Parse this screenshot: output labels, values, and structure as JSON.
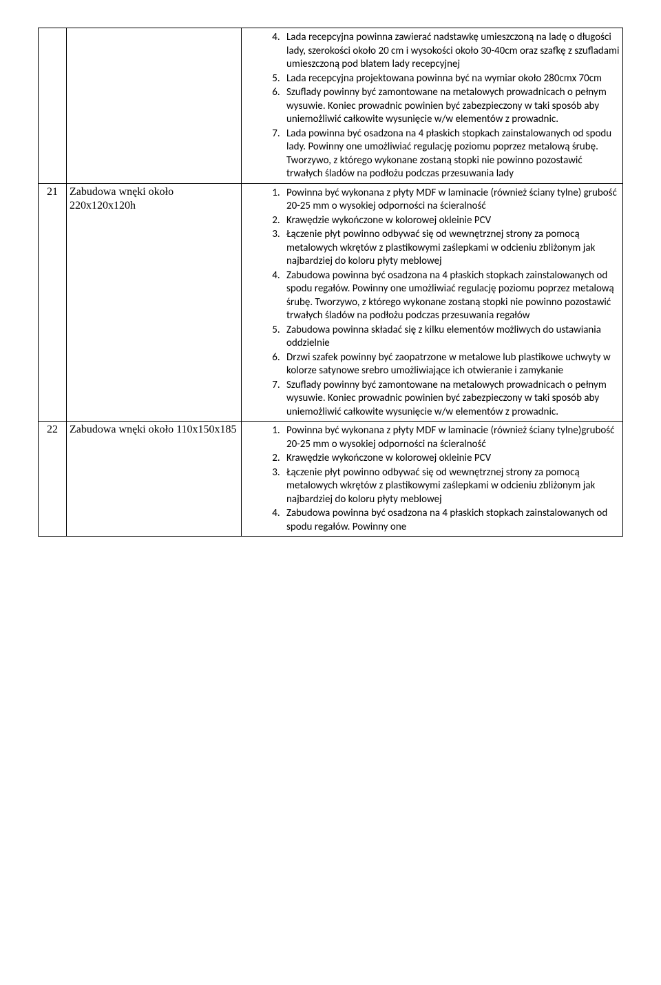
{
  "rows": [
    {
      "num": "",
      "desc": "",
      "start": 4,
      "items": [
        "Lada recepcyjna powinna zawierać nadstawkę umieszczoną na ladę o długości lady, szerokości około 20 cm i wysokości około 30-40cm oraz szafkę z szufladami umieszczoną pod blatem lady recepcyjnej",
        "Lada recepcyjna projektowana powinna być na wymiar około 280cmx 70cm",
        "Szuflady powinny być zamontowane na metalowych prowadnicach o pełnym wysuwie. Koniec prowadnic powinien być zabezpieczony w taki sposób aby uniemożliwić całkowite wysunięcie w/w elementów z prowadnic.",
        "Lada  powinna być osadzona na 4 płaskich stopkach zainstalowanych od spodu lady. Powinny one umożliwiać regulację poziomu poprzez metalową śrubę. Tworzywo, z którego wykonane zostaną stopki nie powinno pozostawić trwałych śladów na podłożu podczas przesuwania lady"
      ]
    },
    {
      "num": "21",
      "desc": "Zabudowa wnęki około 220x120x120h",
      "start": 1,
      "items": [
        "Powinna być wykonana z płyty MDF w laminacie (również ściany tylne) grubość 20-25 mm o wysokiej odporności na ścieralność",
        "Krawędzie wykończone w kolorowej okleinie PCV",
        "Łączenie płyt powinno odbywać się od wewnętrznej strony za pomocą metalowych wkrętów z plastikowymi zaślepkami w odcieniu zbliżonym jak najbardziej do koloru płyty meblowej",
        "Zabudowa  powinna być osadzona na 4 płaskich stopkach zainstalowanych od spodu regałów. Powinny one umożliwiać regulację poziomu poprzez metalową śrubę. Tworzywo, z którego wykonane zostaną stopki nie powinno pozostawić trwałych śladów na podłożu podczas przesuwania regałów",
        "Zabudowa powinna składać się z kilku elementów możliwych do ustawiania oddzielnie",
        "Drzwi szafek powinny być zaopatrzone w metalowe lub plastikowe uchwyty w kolorze satynowe srebro umożliwiające ich otwieranie i zamykanie",
        "Szuflady powinny być zamontowane na metalowych prowadnicach o pełnym wysuwie. Koniec prowadnic powinien być zabezpieczony w taki sposób aby uniemożliwić całkowite wysunięcie w/w elementów z prowadnic."
      ]
    },
    {
      "num": "22",
      "desc": "Zabudowa wnęki około 110x150x185",
      "start": 1,
      "items": [
        "Powinna być wykonana z płyty MDF w laminacie (również ściany tylne)grubość 20-25 mm o wysokiej odporności na ścieralność",
        "Krawędzie wykończone w kolorowej okleinie PCV",
        "Łączenie płyt powinno odbywać się od wewnętrznej strony za pomocą metalowych wkrętów z plastikowymi zaślepkami w odcieniu zbliżonym jak najbardziej do koloru płyty meblowej",
        "Zabudowa  powinna być osadzona na 4 płaskich stopkach zainstalowanych od spodu regałów. Powinny one"
      ]
    }
  ]
}
